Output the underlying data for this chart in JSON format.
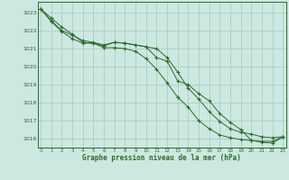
{
  "x": [
    0,
    1,
    2,
    3,
    4,
    5,
    6,
    7,
    8,
    9,
    10,
    11,
    12,
    13,
    14,
    15,
    16,
    17,
    18,
    19,
    20,
    21,
    22,
    23
  ],
  "line1": [
    1023.2,
    1022.7,
    1022.2,
    1021.8,
    1021.35,
    1021.3,
    1021.15,
    1021.35,
    1021.3,
    1021.2,
    1021.1,
    1020.5,
    1020.3,
    1019.2,
    1019.0,
    1018.5,
    1018.1,
    1017.4,
    1016.9,
    1016.5,
    1015.9,
    1015.85,
    1015.85,
    1016.1
  ],
  "line2": [
    1023.2,
    1022.55,
    1022.0,
    1021.75,
    1021.45,
    1021.35,
    1021.2,
    1021.35,
    1021.3,
    1021.2,
    1021.1,
    1021.0,
    1020.5,
    1019.7,
    1018.8,
    1018.2,
    1017.5,
    1016.95,
    1016.55,
    1016.35,
    1016.25,
    1016.1,
    1016.05,
    1016.1
  ],
  "line3": [
    1023.2,
    1022.5,
    1021.95,
    1021.55,
    1021.3,
    1021.3,
    1021.05,
    1021.05,
    1021.0,
    1020.85,
    1020.45,
    1019.85,
    1019.1,
    1018.3,
    1017.75,
    1017.0,
    1016.55,
    1016.2,
    1016.05,
    1015.95,
    1015.9,
    1015.8,
    1015.75,
    1016.1
  ],
  "line_color": "#2d6a2d",
  "bg_color": "#cce8e0",
  "grid_color_major": "#b0cfc8",
  "grid_color_minor": "#c8ddd8",
  "xlabel": "Graphe pression niveau de la mer (hPa)",
  "ylim": [
    1015.5,
    1023.6
  ],
  "xlim": [
    -0.3,
    23.3
  ],
  "yticks": [
    1016,
    1017,
    1018,
    1019,
    1020,
    1021,
    1022,
    1023
  ],
  "xticks": [
    0,
    1,
    2,
    3,
    4,
    5,
    6,
    7,
    8,
    9,
    10,
    11,
    12,
    13,
    14,
    15,
    16,
    17,
    18,
    19,
    20,
    21,
    22,
    23
  ]
}
